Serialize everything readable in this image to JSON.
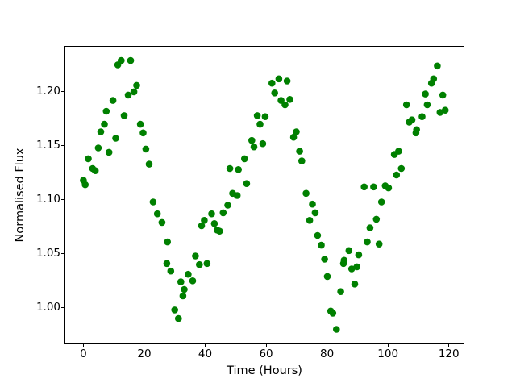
{
  "chart_data": {
    "type": "scatter",
    "title": "",
    "xlabel": "Time (Hours)",
    "ylabel": "Normalised Flux",
    "legend": null,
    "grid": false,
    "marker_color": "#008000",
    "xlim": [
      -6.2,
      125.1
    ],
    "ylim": [
      0.9655,
      1.2415
    ],
    "xticks": [
      0,
      20,
      40,
      60,
      80,
      100,
      120
    ],
    "xtick_labels": [
      "0",
      "20",
      "40",
      "60",
      "80",
      "100",
      "120"
    ],
    "yticks": [
      1.0,
      1.05,
      1.1,
      1.15,
      1.2
    ],
    "ytick_labels": [
      "1.00",
      "1.05",
      "1.10",
      "1.15",
      "1.20"
    ],
    "points": [
      [
        0.0,
        1.117
      ],
      [
        0.6,
        1.113
      ],
      [
        1.6,
        1.137
      ],
      [
        3.0,
        1.128
      ],
      [
        3.9,
        1.126
      ],
      [
        4.9,
        1.147
      ],
      [
        5.7,
        1.162
      ],
      [
        6.9,
        1.169
      ],
      [
        7.5,
        1.181
      ],
      [
        8.4,
        1.143
      ],
      [
        9.7,
        1.191
      ],
      [
        10.6,
        1.156
      ],
      [
        11.3,
        1.224
      ],
      [
        12.4,
        1.228
      ],
      [
        13.4,
        1.177
      ],
      [
        14.7,
        1.196
      ],
      [
        15.5,
        1.228
      ],
      [
        16.6,
        1.199
      ],
      [
        17.5,
        1.205
      ],
      [
        18.7,
        1.169
      ],
      [
        19.6,
        1.161
      ],
      [
        20.5,
        1.146
      ],
      [
        21.6,
        1.132
      ],
      [
        22.9,
        1.097
      ],
      [
        24.3,
        1.086
      ],
      [
        25.8,
        1.078
      ],
      [
        27.4,
        1.04
      ],
      [
        27.6,
        1.06
      ],
      [
        28.7,
        1.033
      ],
      [
        30.0,
        0.997
      ],
      [
        31.2,
        0.989
      ],
      [
        32.0,
        1.023
      ],
      [
        32.7,
        1.01
      ],
      [
        33.1,
        1.016
      ],
      [
        34.4,
        1.03
      ],
      [
        35.9,
        1.024
      ],
      [
        36.8,
        1.047
      ],
      [
        38.1,
        1.039
      ],
      [
        38.8,
        1.075
      ],
      [
        39.7,
        1.08
      ],
      [
        40.6,
        1.04
      ],
      [
        42.1,
        1.086
      ],
      [
        43.0,
        1.077
      ],
      [
        43.9,
        1.071
      ],
      [
        44.7,
        1.07
      ],
      [
        45.9,
        1.087
      ],
      [
        47.4,
        1.094
      ],
      [
        48.1,
        1.128
      ],
      [
        49.0,
        1.105
      ],
      [
        50.5,
        1.103
      ],
      [
        50.9,
        1.127
      ],
      [
        52.9,
        1.137
      ],
      [
        53.6,
        1.114
      ],
      [
        55.3,
        1.154
      ],
      [
        56.0,
        1.148
      ],
      [
        57.1,
        1.177
      ],
      [
        58.0,
        1.169
      ],
      [
        58.9,
        1.151
      ],
      [
        59.7,
        1.176
      ],
      [
        61.9,
        1.207
      ],
      [
        62.8,
        1.198
      ],
      [
        64.2,
        1.211
      ],
      [
        64.9,
        1.191
      ],
      [
        66.2,
        1.187
      ],
      [
        66.9,
        1.209
      ],
      [
        67.8,
        1.192
      ],
      [
        69.0,
        1.157
      ],
      [
        69.9,
        1.162
      ],
      [
        71.0,
        1.144
      ],
      [
        71.7,
        1.135
      ],
      [
        73.1,
        1.105
      ],
      [
        74.3,
        1.08
      ],
      [
        75.2,
        1.095
      ],
      [
        76.1,
        1.087
      ],
      [
        76.9,
        1.066
      ],
      [
        78.1,
        1.057
      ],
      [
        79.2,
        1.044
      ],
      [
        80.1,
        1.028
      ],
      [
        81.2,
        0.996
      ],
      [
        81.9,
        0.994
      ],
      [
        83.1,
        0.979
      ],
      [
        84.5,
        1.014
      ],
      [
        85.4,
        1.04
      ],
      [
        85.6,
        1.043
      ],
      [
        87.2,
        1.052
      ],
      [
        88.1,
        1.035
      ],
      [
        89.1,
        1.021
      ],
      [
        89.8,
        1.037
      ],
      [
        90.4,
        1.048
      ],
      [
        92.2,
        1.111
      ],
      [
        93.2,
        1.06
      ],
      [
        94.1,
        1.073
      ],
      [
        95.3,
        1.111
      ],
      [
        96.2,
        1.081
      ],
      [
        97.1,
        1.058
      ],
      [
        97.9,
        1.097
      ],
      [
        99.1,
        1.112
      ],
      [
        100.2,
        1.11
      ],
      [
        102.1,
        1.141
      ],
      [
        102.8,
        1.122
      ],
      [
        103.5,
        1.144
      ],
      [
        104.4,
        1.128
      ],
      [
        106.1,
        1.187
      ],
      [
        107.0,
        1.171
      ],
      [
        107.9,
        1.173
      ],
      [
        109.2,
        1.161
      ],
      [
        109.4,
        1.164
      ],
      [
        111.2,
        1.176
      ],
      [
        112.3,
        1.197
      ],
      [
        112.9,
        1.187
      ],
      [
        114.3,
        1.207
      ],
      [
        115.0,
        1.211
      ],
      [
        116.2,
        1.223
      ],
      [
        117.1,
        1.18
      ],
      [
        118.0,
        1.196
      ],
      [
        118.8,
        1.182
      ]
    ]
  }
}
